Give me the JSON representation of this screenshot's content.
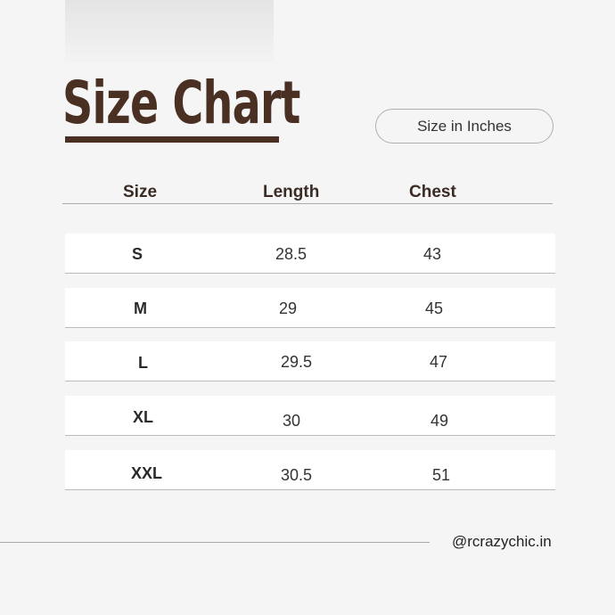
{
  "title": "Size Chart",
  "unit_label": "Size in Inches",
  "columns": [
    "Size",
    "Length",
    "Chest"
  ],
  "rows": [
    {
      "size": "S",
      "length": "28.5",
      "chest": "43"
    },
    {
      "size": "M",
      "length": "29",
      "chest": "45"
    },
    {
      "size": "L",
      "length": "29.5",
      "chest": "47"
    },
    {
      "size": "XL",
      "length": "30",
      "chest": "49"
    },
    {
      "size": "XXL",
      "length": "30.5",
      "chest": "51"
    }
  ],
  "footer": {
    "handle": "@rcrazychic.in"
  },
  "colors": {
    "title": "#4a2f23",
    "background": "#f5f5f5"
  }
}
